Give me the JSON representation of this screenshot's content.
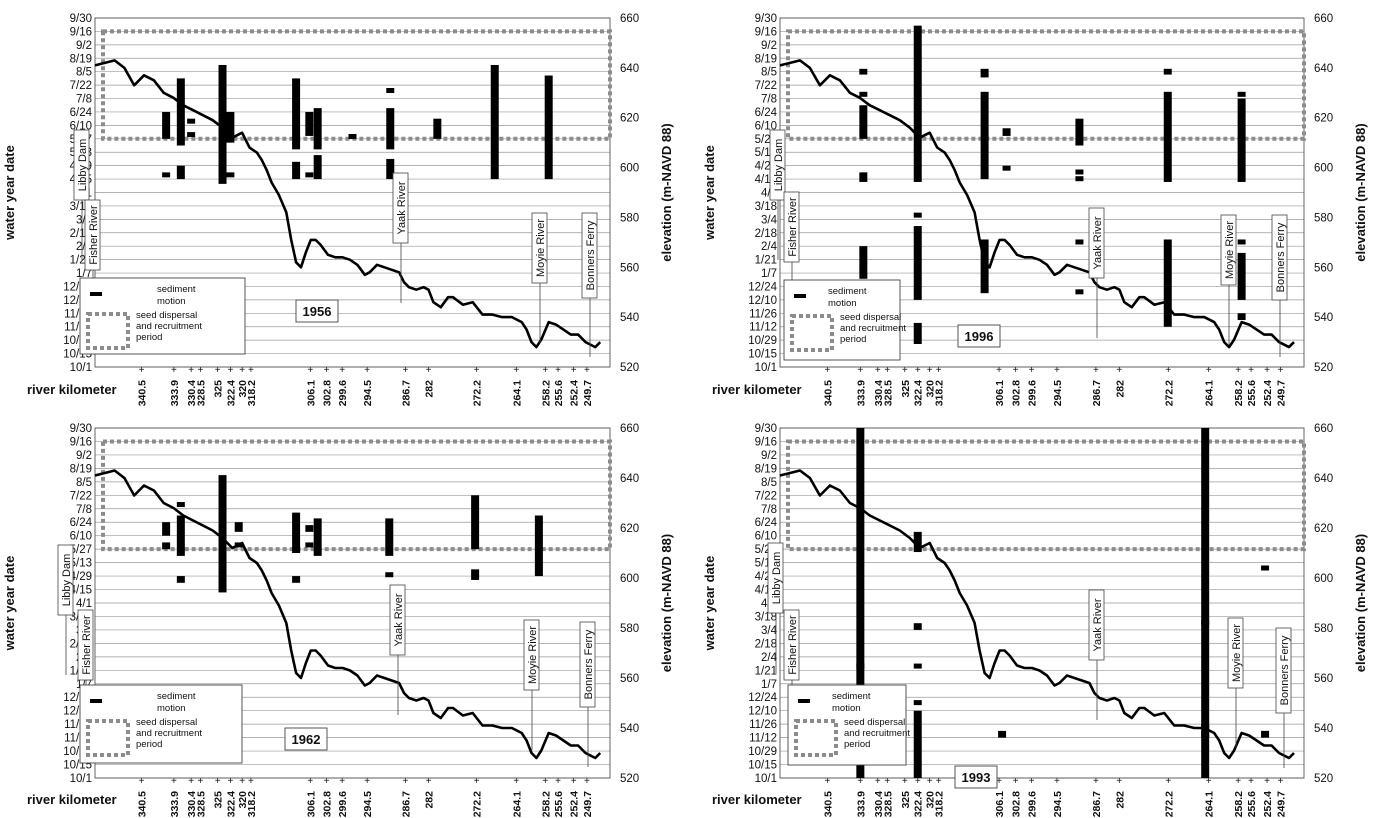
{
  "chart_data": {
    "shared": {
      "type": "line",
      "y_left_label": "water year date",
      "y_right_label": "elevation (m-NAVD 88)",
      "x_label": "river kilometer",
      "date_ticks": [
        "9/30",
        "9/16",
        "9/2",
        "8/19",
        "8/5",
        "7/22",
        "7/8",
        "6/24",
        "6/10",
        "5/27",
        "5/13",
        "4/29",
        "4/15",
        "4/1",
        "3/18",
        "3/4",
        "2/18",
        "2/4",
        "1/21",
        "1/7",
        "12/24",
        "12/10",
        "11/26",
        "11/12",
        "10/29",
        "10/15",
        "10/1"
      ],
      "elev_ticks": [
        "660",
        "640",
        "620",
        "600",
        "580",
        "560",
        "540",
        "520"
      ],
      "elev_range": [
        520,
        660
      ],
      "km_ticks": [
        "340.5",
        "333.9",
        "330.4",
        "328.5",
        "325",
        "322.4",
        "320",
        "318.2",
        "306.1",
        "302.8",
        "299.6",
        "294.5",
        "286.7",
        "282",
        "272.2",
        "264.1",
        "258.2",
        "255.6",
        "252.4",
        "249.7"
      ],
      "km_range": [
        350,
        245
      ],
      "seed_period": [
        "5/27",
        "9/16"
      ],
      "legend": {
        "sediment": "sediment\nmotion",
        "seed": "seed dispersal\nand recruitment\nperiod"
      },
      "river_labels": [
        "Libby Dam",
        "Fisher River",
        "Yaak River",
        "Moyie River",
        "Bonners Ferry"
      ],
      "profile": {
        "km": [
          350,
          348,
          346,
          344,
          342,
          340,
          338,
          336,
          334,
          332,
          330,
          328,
          326,
          324,
          322,
          320,
          318.5,
          317,
          316,
          315,
          314,
          312.5,
          311,
          310,
          309,
          308,
          307,
          306,
          305,
          304,
          302.5,
          301,
          299.5,
          298,
          296.5,
          295,
          294,
          292.5,
          291,
          289.5,
          288,
          287,
          286,
          284.5,
          283,
          282,
          281,
          279.5,
          278,
          277,
          275,
          273,
          271,
          269,
          267,
          265,
          264,
          263,
          262,
          261,
          260,
          259,
          257.5,
          256,
          254.5,
          253,
          251.5,
          250,
          249,
          248,
          247
        ],
        "elev": [
          641,
          642,
          643,
          640,
          633,
          637,
          635,
          630,
          628,
          625,
          623,
          621,
          619,
          616,
          612,
          614,
          608,
          606,
          603,
          599,
          594,
          589,
          582,
          571,
          562,
          560,
          566,
          571,
          571,
          569,
          565,
          564,
          564,
          563,
          561,
          557,
          558,
          561,
          560,
          559,
          558,
          554,
          552,
          551,
          552,
          551,
          546,
          544,
          548,
          548,
          545,
          546,
          541,
          541,
          540,
          540,
          539,
          538,
          535,
          530,
          528,
          531,
          538,
          537,
          535,
          533,
          533,
          530,
          529,
          528,
          530
        ]
      }
    },
    "panels": [
      {
        "year": "1956",
        "bars": [
          {
            "km": 335.5,
            "segs": [
              [
                "6/24",
                "5/27"
              ],
              [
                "4/22",
                "4/21"
              ]
            ]
          },
          {
            "km": 332.5,
            "segs": [
              [
                "7/29",
                "5/20"
              ],
              [
                "4/29",
                "4/15"
              ]
            ]
          },
          {
            "km": 330.4,
            "segs": [
              [
                "6/17",
                "6/16"
              ],
              [
                "6/3",
                "5/31"
              ]
            ]
          },
          {
            "km": 324.0,
            "segs": [
              [
                "8/12",
                "4/10"
              ]
            ]
          },
          {
            "km": 322.4,
            "segs": [
              [
                "6/24",
                "5/23"
              ],
              [
                "4/22",
                "4/21"
              ]
            ]
          },
          {
            "km": 309.0,
            "segs": [
              [
                "7/29",
                "5/16"
              ],
              [
                "5/3",
                "4/15"
              ]
            ]
          },
          {
            "km": 306.3,
            "segs": [
              [
                "6/24",
                "5/30"
              ],
              [
                "4/22",
                "4/21"
              ]
            ]
          },
          {
            "km": 304.6,
            "segs": [
              [
                "6/28",
                "5/16"
              ],
              [
                "5/10",
                "4/15"
              ]
            ]
          },
          {
            "km": 297.5,
            "segs": [
              [
                "6/1",
                "5/31"
              ]
            ]
          },
          {
            "km": 289.8,
            "segs": [
              [
                "7/19",
                "7/18"
              ],
              [
                "6/28",
                "5/16"
              ],
              [
                "5/6",
                "4/15"
              ]
            ]
          },
          {
            "km": 280.2,
            "segs": [
              [
                "6/17",
                "5/27"
              ]
            ]
          },
          {
            "km": 268.5,
            "segs": [
              [
                "8/12",
                "4/15"
              ]
            ]
          },
          {
            "km": 257.5,
            "segs": [
              [
                "8/1",
                "4/15"
              ]
            ]
          }
        ]
      },
      {
        "year": "1996",
        "bars": [
          {
            "km": 333.3,
            "segs": [
              [
                "8/8",
                "8/2"
              ],
              [
                "7/15",
                "7/14"
              ],
              [
                "7/1",
                "5/27"
              ],
              [
                "4/22",
                "4/12"
              ],
              [
                "2/4",
                "1/1"
              ]
            ]
          },
          {
            "km": 322.4,
            "segs": [
              [
                "9/22",
                "4/12"
              ],
              [
                "3/11",
                "3/10"
              ],
              [
                "2/25",
                "12/10"
              ],
              [
                "11/16",
                "10/25"
              ]
            ]
          },
          {
            "km": 309.0,
            "segs": [
              [
                "8/8",
                "7/30"
              ],
              [
                "7/15",
                "4/15"
              ],
              [
                "2/11",
                "12/17"
              ],
              [
                "11/12",
                "11/11"
              ]
            ]
          },
          {
            "km": 304.6,
            "segs": [
              [
                "6/7",
                "5/30"
              ],
              [
                "4/29",
                "4/28"
              ]
            ]
          },
          {
            "km": 290.0,
            "segs": [
              [
                "6/17",
                "5/20"
              ],
              [
                "4/25",
                "4/24"
              ],
              [
                "4/18",
                "4/15"
              ],
              [
                "2/11",
                "2/10"
              ],
              [
                "12/21",
                "12/20"
              ]
            ]
          },
          {
            "km": 272.3,
            "segs": [
              [
                "8/8",
                "8/2"
              ],
              [
                "7/15",
                "4/12"
              ],
              [
                "2/11",
                "11/12"
              ]
            ]
          },
          {
            "km": 257.5,
            "segs": [
              [
                "7/15",
                "7/14"
              ],
              [
                "7/8",
                "4/12"
              ],
              [
                "2/11",
                "2/10"
              ],
              [
                "1/28",
                "12/10"
              ],
              [
                "11/26",
                "11/19"
              ]
            ]
          }
        ]
      },
      {
        "year": "1962",
        "bars": [
          {
            "km": 335.5,
            "segs": [
              [
                "6/24",
                "6/10"
              ],
              [
                "6/3",
                "5/27"
              ]
            ]
          },
          {
            "km": 332.5,
            "segs": [
              [
                "7/15",
                "7/12"
              ],
              [
                "7/1",
                "5/20"
              ],
              [
                "4/29",
                "4/22"
              ]
            ]
          },
          {
            "km": 324.0,
            "segs": [
              [
                "8/12",
                "4/12"
              ]
            ]
          },
          {
            "km": 320.7,
            "segs": [
              [
                "6/24",
                "6/14"
              ],
              [
                "6/3",
                "5/31"
              ]
            ]
          },
          {
            "km": 309.0,
            "segs": [
              [
                "7/4",
                "5/23"
              ],
              [
                "4/29",
                "4/22"
              ]
            ]
          },
          {
            "km": 306.3,
            "segs": [
              [
                "6/21",
                "6/14"
              ],
              [
                "6/3",
                "5/31"
              ]
            ]
          },
          {
            "km": 304.6,
            "segs": [
              [
                "6/28",
                "5/20"
              ]
            ]
          },
          {
            "km": 290.0,
            "segs": [
              [
                "6/28",
                "5/20"
              ],
              [
                "5/3",
                "5/1"
              ]
            ]
          },
          {
            "km": 272.5,
            "segs": [
              [
                "7/22",
                "5/27"
              ],
              [
                "5/6",
                "4/25"
              ]
            ]
          },
          {
            "km": 259.5,
            "segs": [
              [
                "7/1",
                "4/29"
              ]
            ]
          }
        ]
      },
      {
        "year": "1993",
        "bars": [
          {
            "km": 333.9,
            "segs": [
              [
                "1/28",
                "1/27"
              ],
              [
                "10/1",
                "9/30"
              ]
            ]
          },
          {
            "km": 322.4,
            "segs": [
              [
                "6/14",
                "5/24"
              ],
              [
                "3/11",
                "3/4"
              ],
              [
                "1/28",
                "1/27"
              ],
              [
                "12/21",
                "12/20"
              ],
              [
                "12/10",
                "10/1"
              ]
            ]
          },
          {
            "km": 305.5,
            "segs": [
              [
                "11/19",
                "11/12"
              ]
            ]
          },
          {
            "km": 264.8,
            "segs": [
              [
                "3/14",
                "3/13"
              ],
              [
                "11/26",
                "11/25"
              ],
              [
                "11/19",
                "11/12"
              ],
              [
                "10/1",
                "9/30"
              ]
            ]
          },
          {
            "km": 252.8,
            "segs": [
              [
                "5/10",
                "5/6"
              ],
              [
                "11/19",
                "11/12"
              ]
            ]
          }
        ]
      }
    ]
  }
}
